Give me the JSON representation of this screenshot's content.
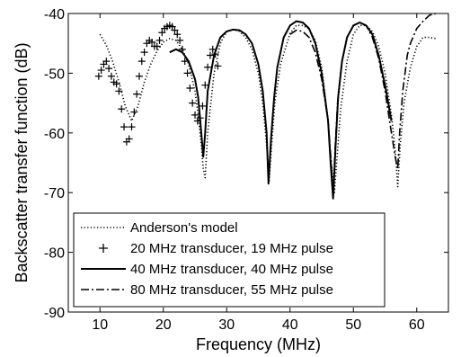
{
  "chart_data": {
    "type": "line",
    "title": "",
    "xlabel": "Frequency (MHz)",
    "ylabel": "Backscatter transfer function (dB)",
    "xlim": [
      5,
      65
    ],
    "ylim": [
      -90,
      -40
    ],
    "xticks": [
      10,
      20,
      30,
      40,
      50,
      60
    ],
    "yticks": [
      -90,
      -80,
      -70,
      -60,
      -50,
      -40
    ],
    "grid": false,
    "legend_position": "bottom-left",
    "series": [
      {
        "name": "Anderson's model",
        "style": "dotted",
        "color": "#000000",
        "x": [
          10,
          11,
          12,
          13,
          14,
          15,
          16,
          17,
          18,
          19,
          20,
          21,
          22,
          23,
          24,
          25,
          25.5,
          26,
          26.3,
          26.6,
          27,
          28,
          29,
          30,
          31,
          32,
          33,
          34,
          35,
          35.7,
          36.3,
          36.7,
          37.1,
          37.6,
          38.5,
          40,
          41,
          42,
          43,
          44,
          45,
          46,
          46.5,
          47,
          47.5,
          48,
          49,
          50,
          51,
          52,
          53,
          54,
          55,
          56,
          56.6,
          57,
          57.4,
          58,
          59,
          60,
          61,
          62,
          63
        ],
        "y": [
          -43.5,
          -45.3,
          -48,
          -51.5,
          -55.5,
          -58,
          -55.5,
          -51.5,
          -48.5,
          -46.3,
          -44.8,
          -44.2,
          -44.5,
          -46,
          -48.5,
          -53,
          -57,
          -62,
          -66,
          -67.5,
          -60,
          -50,
          -45,
          -43,
          -42.7,
          -43,
          -44,
          -46,
          -50,
          -55,
          -62,
          -68,
          -62,
          -55,
          -48.5,
          -43.3,
          -42,
          -42,
          -42.6,
          -44.5,
          -49,
          -58,
          -65,
          -70,
          -63,
          -56,
          -48,
          -43.5,
          -42,
          -42,
          -43,
          -45.5,
          -50,
          -57,
          -63,
          -69,
          -62,
          -55,
          -49,
          -45.5,
          -44,
          -44,
          -44.2
        ]
      },
      {
        "name": "20 MHz transducer, 19 MHz pulse",
        "style": "plus",
        "color": "#000000",
        "x": [
          9.8,
          10.2,
          10.6,
          11,
          11.4,
          11.8,
          12.2,
          12.6,
          13,
          13.4,
          13.8,
          14.2,
          14.6,
          15,
          15.4,
          15.8,
          16.2,
          16.6,
          17,
          17.4,
          17.8,
          18.2,
          18.6,
          19,
          19.4,
          19.8,
          20.2,
          20.6,
          21,
          21.4,
          21.8,
          22.2,
          22.6,
          23,
          23.4,
          23.8,
          24.2,
          24.6,
          25,
          25.4,
          25.8,
          26.2,
          26.6,
          27,
          27.4,
          27.8,
          28.2,
          28.6
        ],
        "y": [
          -50.5,
          -49.5,
          -48.5,
          -48,
          -49.2,
          -50.5,
          -51.5,
          -51.8,
          -53,
          -56,
          -59,
          -61.5,
          -61,
          -59,
          -56.5,
          -53.5,
          -50.5,
          -48,
          -46.5,
          -45,
          -44.5,
          -44.8,
          -45.5,
          -45.5,
          -44.5,
          -43.2,
          -42.5,
          -42.2,
          -42,
          -42.2,
          -42.8,
          -43.5,
          -44.5,
          -46,
          -48,
          -50,
          -52.5,
          -55,
          -57,
          -58,
          -57.5,
          -55.5,
          -52,
          -49,
          -47,
          -46,
          -46.8,
          -48.8
        ]
      },
      {
        "name": "40 MHz transducer, 40 MHz pulse",
        "style": "solid",
        "color": "#000000",
        "x": [
          21,
          22,
          23,
          24,
          25,
          25.5,
          26,
          26.3,
          26.6,
          27,
          28,
          29,
          30,
          31,
          32,
          33,
          34,
          35,
          35.7,
          36.3,
          36.6,
          37,
          37.5,
          38,
          39,
          40,
          41,
          42,
          43,
          44,
          45,
          46,
          46.4,
          46.8,
          47.2,
          47.6,
          48.2,
          49,
          50,
          51,
          52,
          53,
          54,
          55,
          56
        ],
        "y": [
          -46.5,
          -46,
          -46.5,
          -48,
          -51,
          -54,
          -60,
          -64,
          -60,
          -53,
          -47,
          -44,
          -43,
          -42.7,
          -42.8,
          -43.5,
          -45,
          -48.5,
          -53,
          -60,
          -68.5,
          -61,
          -54,
          -49,
          -44,
          -42,
          -41.3,
          -41.5,
          -42.5,
          -45,
          -50,
          -58,
          -65,
          -71,
          -62,
          -54,
          -48,
          -44,
          -42,
          -41.5,
          -42,
          -43.5,
          -47,
          -52,
          -58
        ]
      },
      {
        "name": "80 MHz transducer, 55 MHz pulse",
        "style": "dashdot",
        "color": "#000000",
        "x": [
          40,
          41,
          42,
          43,
          44,
          45,
          46,
          46.5,
          46.8,
          47.1,
          47.5,
          48.2,
          49,
          50,
          51,
          52,
          53,
          54,
          55,
          56,
          56.6,
          57,
          57.3,
          57.8,
          58.5,
          59,
          60,
          61,
          62,
          63
        ],
        "y": [
          -43.5,
          -42.8,
          -43,
          -44,
          -46.5,
          -51,
          -58,
          -65,
          -70.5,
          -63,
          -55,
          -48,
          -44,
          -42,
          -41.5,
          -42,
          -44,
          -47.5,
          -53,
          -60,
          -64,
          -66,
          -60,
          -53,
          -47,
          -45,
          -42.5,
          -41.3,
          -40.3,
          -40
        ]
      }
    ]
  }
}
